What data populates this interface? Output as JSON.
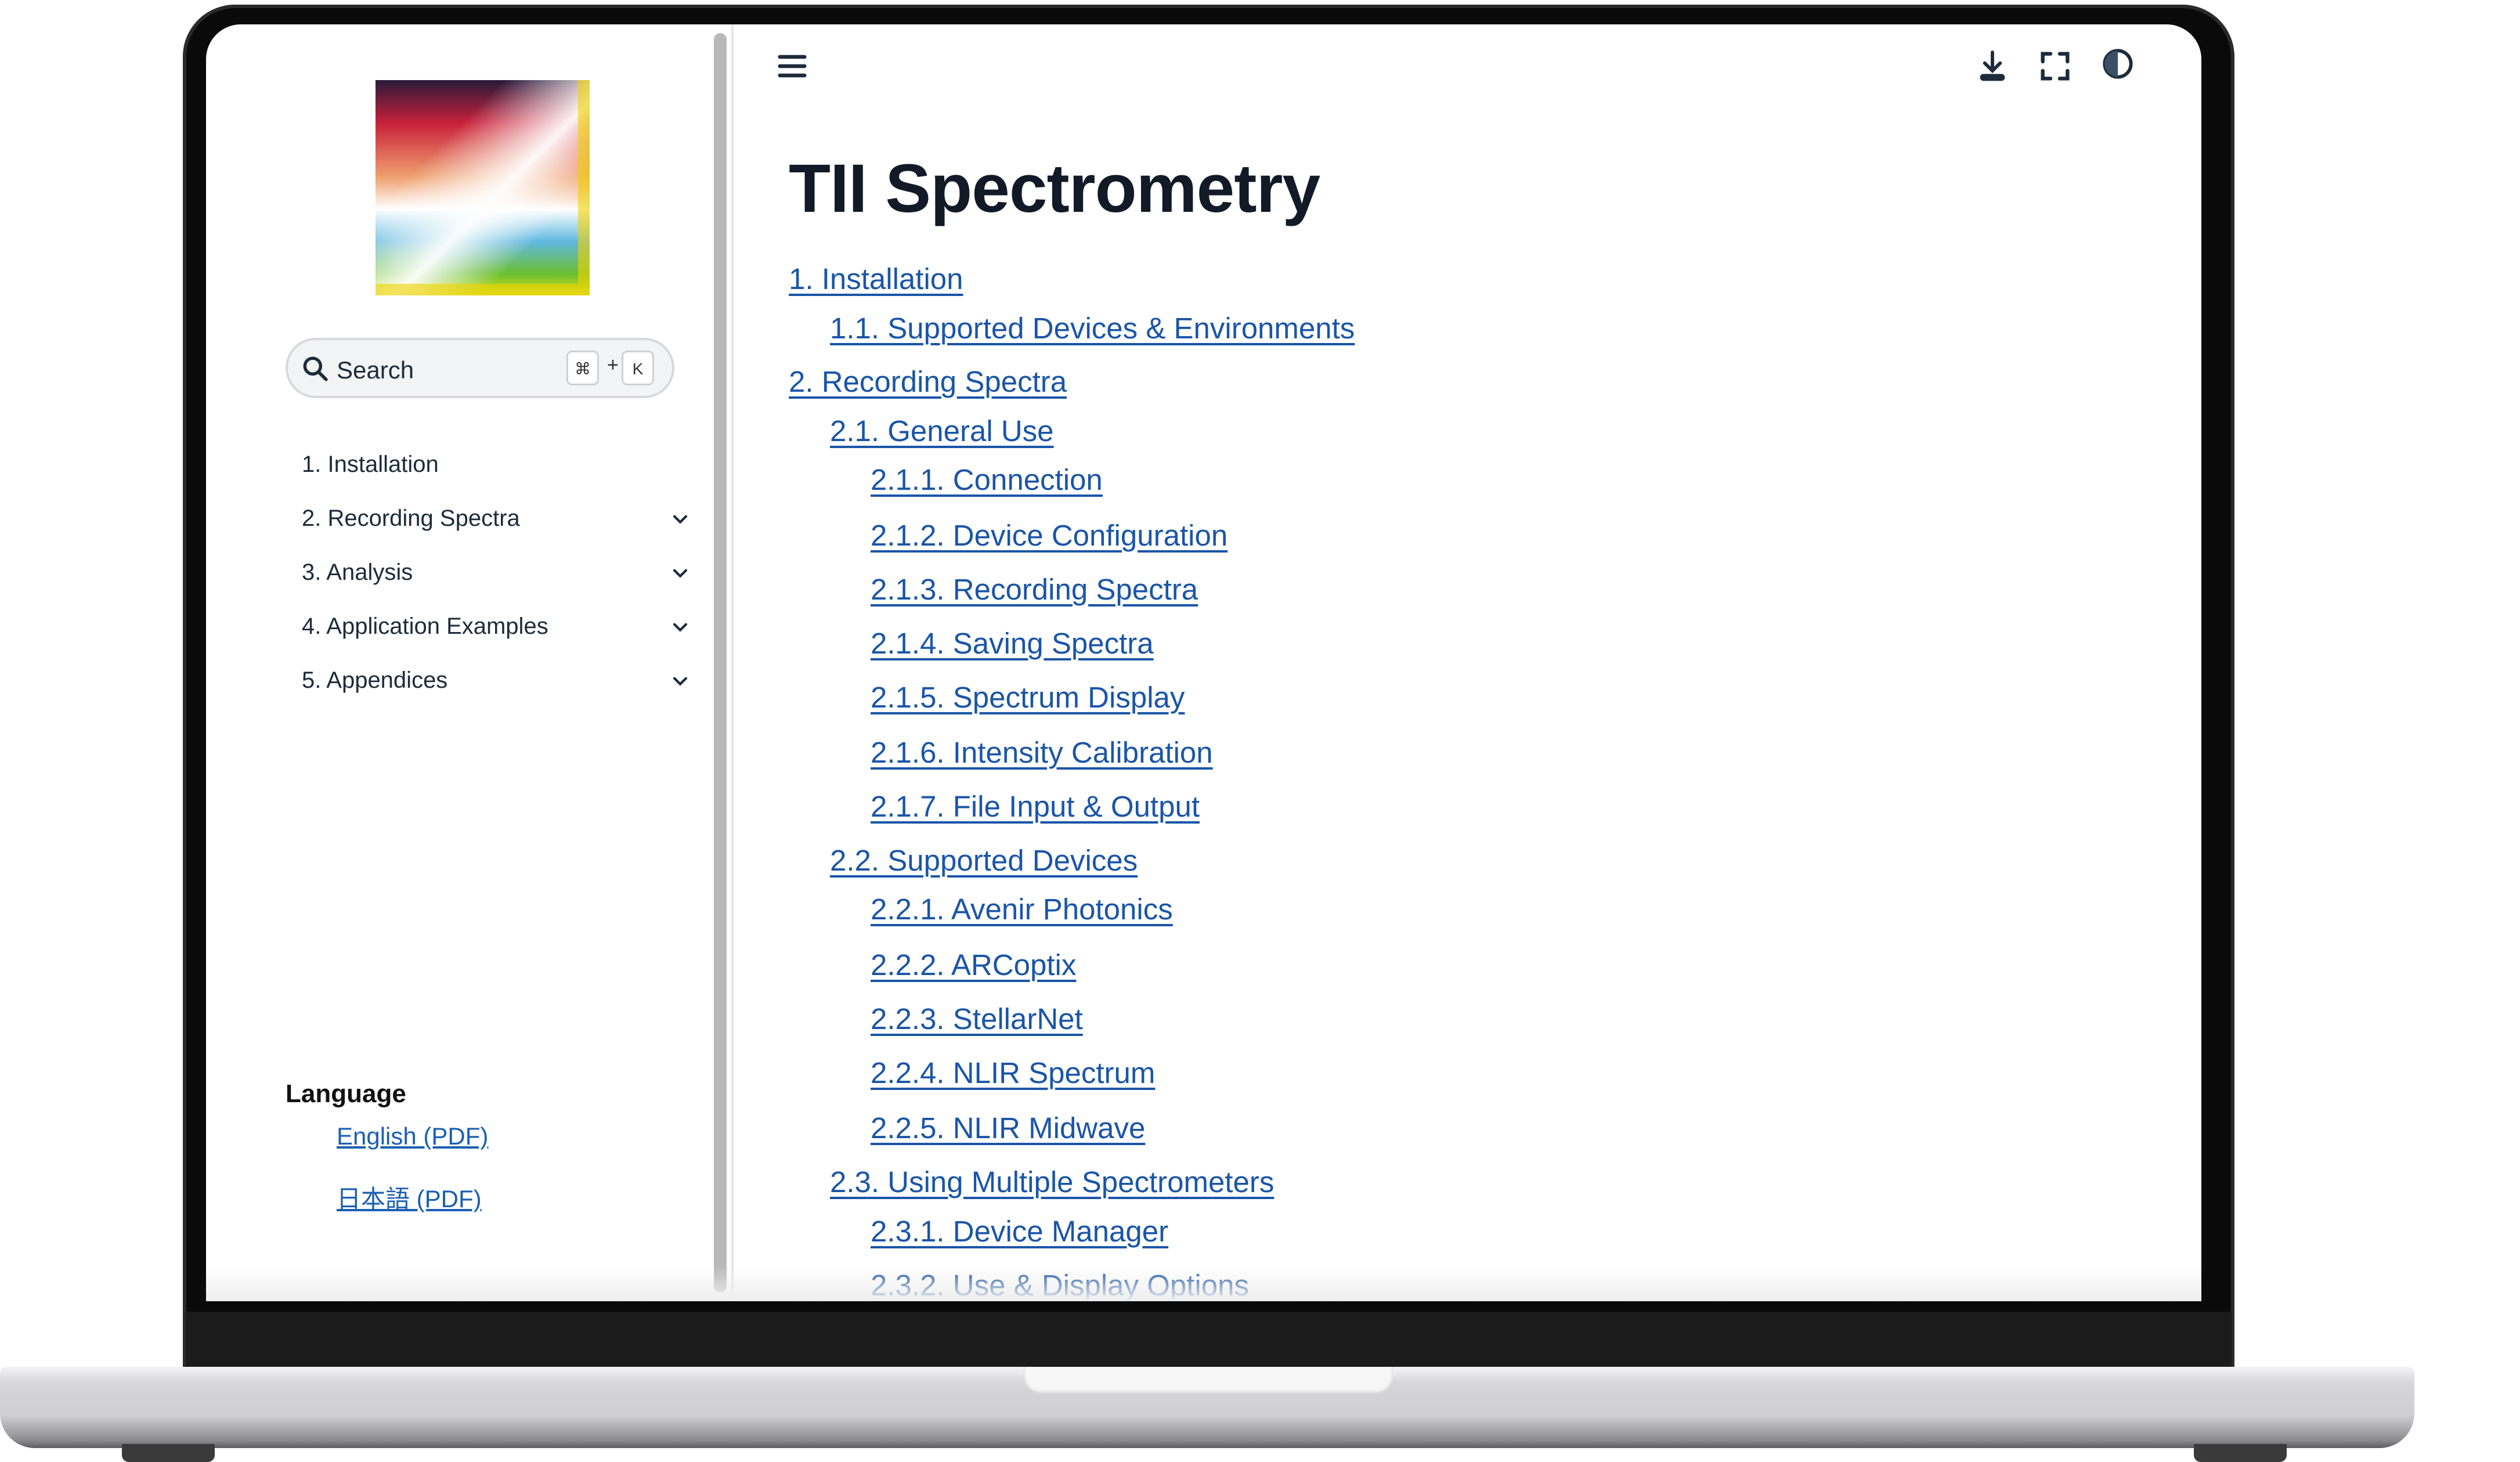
{
  "sidebar": {
    "search": {
      "label": "Search",
      "shortcut_key1": "⌘",
      "shortcut_plus": "+",
      "shortcut_key2": "K"
    },
    "nav": [
      {
        "label": "1. Installation",
        "expandable": false
      },
      {
        "label": "2. Recording Spectra",
        "expandable": true
      },
      {
        "label": "3. Analysis",
        "expandable": true
      },
      {
        "label": "4. Application Examples",
        "expandable": true
      },
      {
        "label": "5. Appendices",
        "expandable": true
      }
    ],
    "language": {
      "heading": "Language",
      "links": [
        "English (PDF)",
        "日本語 (PDF)"
      ]
    }
  },
  "header": {
    "icons": [
      "menu-icon",
      "download-icon",
      "fullscreen-icon",
      "theme-toggle-icon"
    ]
  },
  "main": {
    "title": "TII Spectrometry",
    "toc": [
      {
        "label": "1. Installation",
        "level": 0
      },
      {
        "label": "1.1. Supported Devices & Environments",
        "level": 1
      },
      {
        "label": "2. Recording Spectra",
        "level": 0
      },
      {
        "label": "2.1. General Use",
        "level": 1
      },
      {
        "label": "2.1.1. Connection",
        "level": 2
      },
      {
        "label": "2.1.2. Device Configuration",
        "level": 2
      },
      {
        "label": "2.1.3. Recording Spectra",
        "level": 2
      },
      {
        "label": "2.1.4. Saving Spectra",
        "level": 2
      },
      {
        "label": "2.1.5. Spectrum Display",
        "level": 2
      },
      {
        "label": "2.1.6. Intensity Calibration",
        "level": 2
      },
      {
        "label": "2.1.7. File Input & Output",
        "level": 2
      },
      {
        "label": "2.2. Supported Devices",
        "level": 1
      },
      {
        "label": "2.2.1. Avenir Photonics",
        "level": 2
      },
      {
        "label": "2.2.2. ARCoptix",
        "level": 2
      },
      {
        "label": "2.2.3. StellarNet",
        "level": 2
      },
      {
        "label": "2.2.4. NLIR Spectrum",
        "level": 2
      },
      {
        "label": "2.2.5. NLIR Midwave",
        "level": 2
      },
      {
        "label": "2.3. Using Multiple Spectrometers",
        "level": 1
      },
      {
        "label": "2.3.1. Device Manager",
        "level": 2
      },
      {
        "label": "2.3.2. Use & Display Options",
        "level": 2
      }
    ]
  },
  "colors": {
    "link": "#1a55a8",
    "text": "#1d2b3a",
    "bezel": "#0a0a0a"
  }
}
